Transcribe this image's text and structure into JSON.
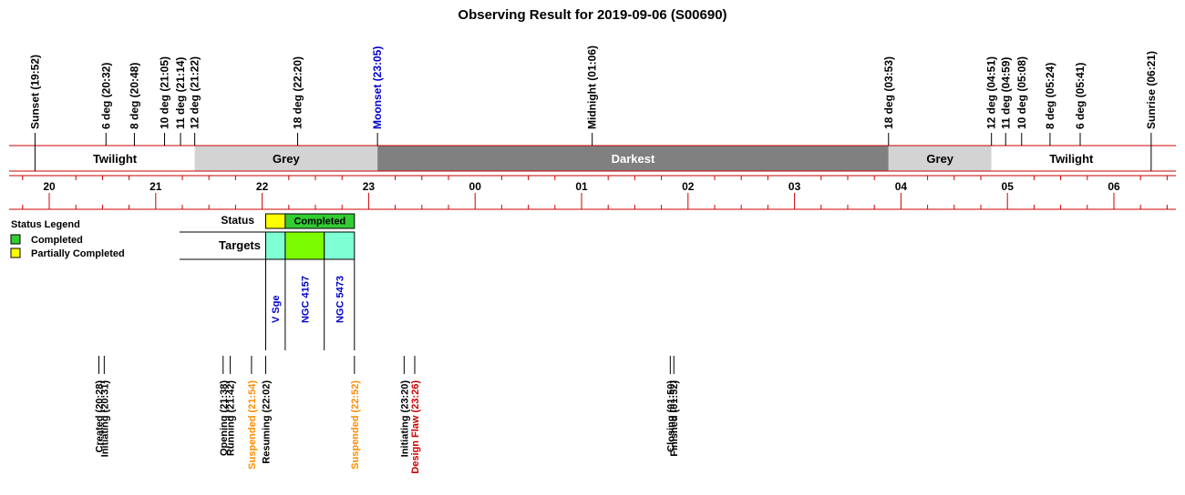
{
  "title": "Observing Result for 2019-09-06 (S00690)",
  "chart_data": {
    "type": "timeline",
    "date": "2019-09-06",
    "hour_ticks": [
      "20",
      "21",
      "22",
      "23",
      "00",
      "01",
      "02",
      "03",
      "04",
      "05",
      "06"
    ],
    "sky_events": [
      {
        "label": "Sunset (19:52)",
        "time": "19:52",
        "color": "#000000"
      },
      {
        "label": "6 deg (20:32)",
        "time": "20:32",
        "color": "#000000"
      },
      {
        "label": "8 deg (20:48)",
        "time": "20:48",
        "color": "#000000"
      },
      {
        "label": "10 deg (21:05)",
        "time": "21:05",
        "color": "#000000"
      },
      {
        "label": "11 deg (21:14)",
        "time": "21:14",
        "color": "#000000"
      },
      {
        "label": "12 deg (21:22)",
        "time": "21:22",
        "color": "#000000"
      },
      {
        "label": "18 deg (22:20)",
        "time": "22:20",
        "color": "#000000"
      },
      {
        "label": "Moonset (23:05)",
        "time": "23:05",
        "color": "#0000cc"
      },
      {
        "label": "Midnight (01:06)",
        "time": "01:06",
        "color": "#000000"
      },
      {
        "label": "18 deg (03:53)",
        "time": "03:53",
        "color": "#000000"
      },
      {
        "label": "12 deg (04:51)",
        "time": "04:51",
        "color": "#000000"
      },
      {
        "label": "11 deg (04:59)",
        "time": "04:59",
        "color": "#000000"
      },
      {
        "label": "10 deg (05:08)",
        "time": "05:08",
        "color": "#000000"
      },
      {
        "label": "8 deg (05:24)",
        "time": "05:24",
        "color": "#000000"
      },
      {
        "label": "6 deg (05:41)",
        "time": "05:41",
        "color": "#000000"
      },
      {
        "label": "Sunrise (06:21)",
        "time": "06:21",
        "color": "#000000"
      }
    ],
    "sky_bands": [
      {
        "label": "Twilight",
        "start": "19:52",
        "end": "21:22",
        "fill": "#ffffff",
        "text_color": "#000000"
      },
      {
        "label": "Grey",
        "start": "21:22",
        "end": "23:05",
        "fill": "#d3d3d3",
        "text_color": "#000000"
      },
      {
        "label": "Darkest",
        "start": "23:05",
        "end": "03:53",
        "fill": "#808080",
        "text_color": "#ffffff"
      },
      {
        "label": "Grey",
        "start": "03:53",
        "end": "04:51",
        "fill": "#d3d3d3",
        "text_color": "#000000"
      },
      {
        "label": "Twilight",
        "start": "04:51",
        "end": "06:21",
        "fill": "#ffffff",
        "text_color": "#000000"
      }
    ],
    "status_row_label": "Status",
    "status_blocks": [
      {
        "start": "22:02",
        "end": "22:13",
        "fill": "#ffff00",
        "label": ""
      },
      {
        "start": "22:13",
        "end": "22:52",
        "fill": "#33cc33",
        "label": "Completed"
      }
    ],
    "targets_row_label": "Targets",
    "targets": [
      {
        "name": "V Sge",
        "start": "22:02",
        "end": "22:13",
        "fill": "#7fffd4"
      },
      {
        "name": "NGC 4157",
        "start": "22:13",
        "end": "22:35",
        "fill": "#7cfc00"
      },
      {
        "name": "NGC 5473",
        "start": "22:35",
        "end": "22:52",
        "fill": "#7fffd4"
      }
    ],
    "legend_title": "Status Legend",
    "legend": [
      {
        "label": "Completed",
        "color": "#33cc33"
      },
      {
        "label": "Partially Completed",
        "color": "#ffff00"
      }
    ],
    "log_events": [
      {
        "label": "Created (20:28)",
        "time": "20:28",
        "color": "#000000"
      },
      {
        "label": "Initiating (20:31)",
        "time": "20:31",
        "color": "#000000"
      },
      {
        "label": "Opening (21:38)",
        "time": "21:38",
        "color": "#000000"
      },
      {
        "label": "Running (21:42)",
        "time": "21:42",
        "color": "#000000"
      },
      {
        "label": "Suspended (21:54)",
        "time": "21:54",
        "color": "#ff8c00"
      },
      {
        "label": "Resuming (22:02)",
        "time": "22:02",
        "color": "#000000"
      },
      {
        "label": "Suspended (22:52)",
        "time": "22:52",
        "color": "#ff8c00"
      },
      {
        "label": "Initiating (23:20)",
        "time": "23:20",
        "color": "#000000"
      },
      {
        "label": "Design Flaw (23:26)",
        "time": "23:26",
        "color": "#cc0000"
      },
      {
        "label": "Closing (01:50)",
        "time": "01:50",
        "color": "#000000"
      },
      {
        "label": "Finished (01:52)",
        "time": "01:52",
        "color": "#000000"
      }
    ]
  }
}
